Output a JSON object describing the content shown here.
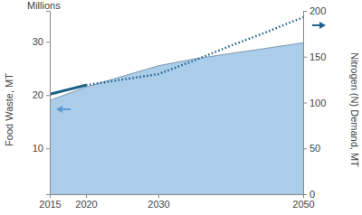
{
  "chart_data": {
    "type": "line",
    "y_label": "Food Waste, MT",
    "y_label_unit": "Millions",
    "y2_label": "Nitrogen (N) Demand, MT",
    "x": [
      2015,
      2020,
      2025,
      2030,
      2035,
      2040,
      2045,
      2050
    ],
    "xlim": [
      2015,
      2050
    ],
    "xticks": [
      2015,
      2020,
      2030,
      2050
    ],
    "ylim": [
      1.4,
      35.8
    ],
    "yticks": [
      10,
      20,
      30
    ],
    "y2lim": [
      0,
      200
    ],
    "y2ticks": [
      0,
      50,
      100,
      150,
      200
    ],
    "series": [
      {
        "type": "area",
        "axis": "y",
        "color": "#aacde9",
        "values": [
          19,
          21.5,
          23.5,
          25.5,
          26.8,
          27.8,
          28.8,
          29.8
        ]
      },
      {
        "type": "line",
        "axis": "y2",
        "color": "#1f5f8b",
        "line_style": "solid",
        "values": [
          109,
          119,
          null,
          null,
          null,
          null,
          null,
          null
        ]
      },
      {
        "type": "line",
        "axis": "y2",
        "color": "#1f5f8b",
        "line_style": "dotted",
        "values": [
          null,
          119,
          125,
          131,
          146,
          162,
          177,
          193
        ]
      }
    ]
  }
}
